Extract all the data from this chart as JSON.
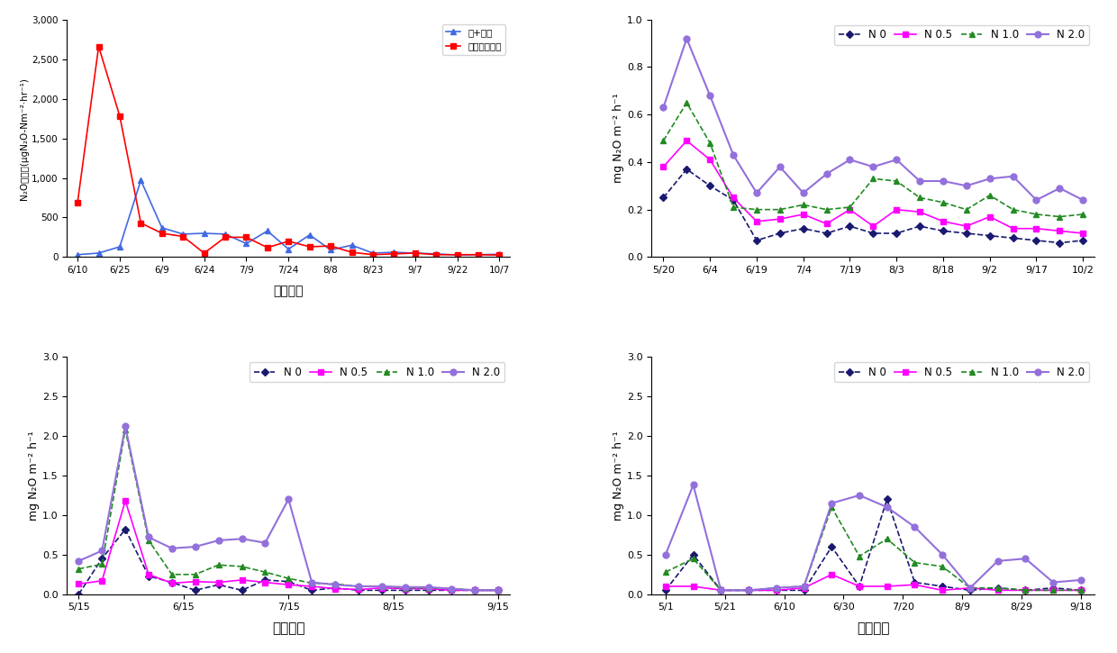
{
  "tl": {
    "x_labels": [
      "6/10",
      "6/25",
      "6/9",
      "6/24",
      "7/9",
      "7/24",
      "8/8",
      "8/23",
      "9/7",
      "9/22",
      "10/7"
    ],
    "blue_y": [
      30,
      50,
      130,
      970,
      370,
      290,
      300,
      290,
      170,
      330,
      100,
      280,
      90,
      150,
      50,
      60,
      50,
      40,
      25,
      30,
      35
    ],
    "red_y": [
      690,
      2660,
      1780,
      430,
      300,
      260,
      50,
      250,
      250,
      120,
      200,
      130,
      140,
      60,
      30,
      40,
      50,
      30,
      30,
      30,
      25
    ],
    "ylabel": "N₂O발생량(μgN₂O-Nm⁻²·hr⁻¹)",
    "xlabel": "조사시기",
    "legend_blue": "무+측간",
    "legend_red": "고추포함자여",
    "ylim": [
      0,
      3000
    ],
    "yticks": [
      0,
      500,
      1000,
      1500,
      2000,
      2500,
      3000
    ]
  },
  "tr": {
    "x_labels": [
      "5/20",
      "6/4",
      "6/19",
      "7/4",
      "7/19",
      "8/3",
      "8/18",
      "9/2",
      "9/17",
      "10/2"
    ],
    "N0": [
      0.25,
      0.37,
      0.3,
      0.24,
      0.07,
      0.1,
      0.12,
      0.1,
      0.13,
      0.1,
      0.1,
      0.13,
      0.11,
      0.1,
      0.09,
      0.08,
      0.07,
      0.06,
      0.07
    ],
    "N05": [
      0.38,
      0.49,
      0.41,
      0.25,
      0.15,
      0.16,
      0.18,
      0.14,
      0.2,
      0.13,
      0.2,
      0.19,
      0.15,
      0.13,
      0.17,
      0.12,
      0.12,
      0.11,
      0.1
    ],
    "N10": [
      0.49,
      0.65,
      0.48,
      0.21,
      0.2,
      0.2,
      0.22,
      0.2,
      0.21,
      0.33,
      0.32,
      0.25,
      0.23,
      0.2,
      0.26,
      0.2,
      0.18,
      0.17,
      0.18
    ],
    "N20": [
      0.63,
      0.92,
      0.68,
      0.43,
      0.27,
      0.38,
      0.27,
      0.35,
      0.41,
      0.38,
      0.41,
      0.32,
      0.32,
      0.3,
      0.33,
      0.34,
      0.24,
      0.29,
      0.24
    ],
    "ylabel": "mg N₂O m⁻² h⁻¹",
    "xlabel": "",
    "ylim": [
      0.0,
      1.0
    ],
    "yticks": [
      0.0,
      0.2,
      0.4,
      0.6,
      0.8,
      1.0
    ]
  },
  "bl": {
    "x_labels": [
      "5/15",
      "6/15",
      "7/15",
      "8/15",
      "9/15"
    ],
    "N0": [
      0.0,
      0.45,
      0.82,
      0.23,
      0.15,
      0.05,
      0.12,
      0.05,
      0.18,
      0.16,
      0.05,
      0.08,
      0.05,
      0.05,
      0.05,
      0.05,
      0.05,
      0.05,
      0.05
    ],
    "N05": [
      0.13,
      0.17,
      1.18,
      0.25,
      0.14,
      0.16,
      0.15,
      0.18,
      0.15,
      0.12,
      0.1,
      0.07,
      0.06,
      0.08,
      0.07,
      0.07,
      0.05,
      0.05,
      0.05
    ],
    "N10": [
      0.32,
      0.38,
      2.08,
      0.68,
      0.25,
      0.25,
      0.37,
      0.35,
      0.28,
      0.2,
      0.14,
      0.13,
      0.1,
      0.1,
      0.08,
      0.08,
      0.07,
      0.05,
      0.05
    ],
    "N20": [
      0.42,
      0.55,
      2.12,
      0.72,
      0.58,
      0.6,
      0.68,
      0.7,
      0.65,
      1.2,
      0.15,
      0.12,
      0.1,
      0.1,
      0.09,
      0.09,
      0.07,
      0.05,
      0.05
    ],
    "ylabel": "mg N₂O m⁻² h⁻¹",
    "xlabel": "조사시기",
    "ylim": [
      0.0,
      3.0
    ],
    "yticks": [
      0.0,
      0.5,
      1.0,
      1.5,
      2.0,
      2.5,
      3.0
    ]
  },
  "br": {
    "x_labels": [
      "5/1",
      "5/21",
      "6/10",
      "6/30",
      "7/20",
      "8/9",
      "8/29",
      "9/18"
    ],
    "N0": [
      0.05,
      0.5,
      0.05,
      0.05,
      0.05,
      0.05,
      0.6,
      0.1,
      1.2,
      0.15,
      0.1,
      0.05,
      0.08,
      0.05,
      0.08,
      0.05
    ],
    "N05": [
      0.1,
      0.1,
      0.05,
      0.05,
      0.05,
      0.08,
      0.25,
      0.1,
      0.1,
      0.12,
      0.05,
      0.08,
      0.05,
      0.05,
      0.05,
      0.05
    ],
    "N10": [
      0.28,
      0.45,
      0.05,
      0.05,
      0.08,
      0.1,
      1.1,
      0.48,
      0.7,
      0.4,
      0.35,
      0.08,
      0.08,
      0.05,
      0.05,
      0.05
    ],
    "N20": [
      0.5,
      1.38,
      0.05,
      0.05,
      0.08,
      0.1,
      1.15,
      1.25,
      1.1,
      0.85,
      0.5,
      0.08,
      0.42,
      0.45,
      0.15,
      0.18
    ],
    "ylabel": "mg N₂O m⁻² h⁻¹",
    "xlabel": "조사시기",
    "ylim": [
      0.0,
      3.0
    ],
    "yticks": [
      0.0,
      0.5,
      1.0,
      1.5,
      2.0,
      2.5,
      3.0
    ]
  },
  "colors": {
    "N0": "#191970",
    "N05": "#FF00FF",
    "N10": "#228B22",
    "N20": "#9370DB",
    "blue": "#4169E1",
    "red": "#FF0000"
  },
  "bg_color": "#FFFFFF"
}
